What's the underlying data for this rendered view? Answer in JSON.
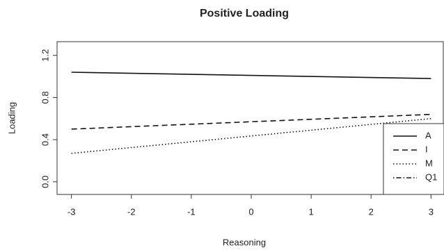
{
  "chart_data": {
    "type": "line",
    "title": "Positive Loading",
    "x_label": "Reasoning",
    "y_label": "Loading",
    "x": [
      -3,
      3
    ],
    "series": [
      {
        "name": "A",
        "color": "#111111",
        "linestyle": "solid",
        "values": [
          1.04,
          0.98
        ]
      },
      {
        "name": "I",
        "color": "#111111",
        "linestyle": "dashed",
        "values": [
          0.5,
          0.64
        ]
      },
      {
        "name": "M",
        "color": "#111111",
        "linestyle": "dotted",
        "values": [
          0.27,
          0.6
        ]
      },
      {
        "name": "Q1",
        "color": "#111111",
        "linestyle": "dotdash",
        "values": [
          null,
          null
        ]
      }
    ],
    "xlim": [
      -3.24,
      3.24
    ],
    "ylim": [
      -0.12,
      1.33
    ],
    "xticks": [
      -3,
      -2,
      -1,
      0,
      1,
      2,
      3
    ],
    "yticks": [
      {
        "value": 0,
        "label": "0.0"
      },
      0.4,
      0.8,
      1.2
    ],
    "legend": "bottom-right",
    "grid": false
  }
}
